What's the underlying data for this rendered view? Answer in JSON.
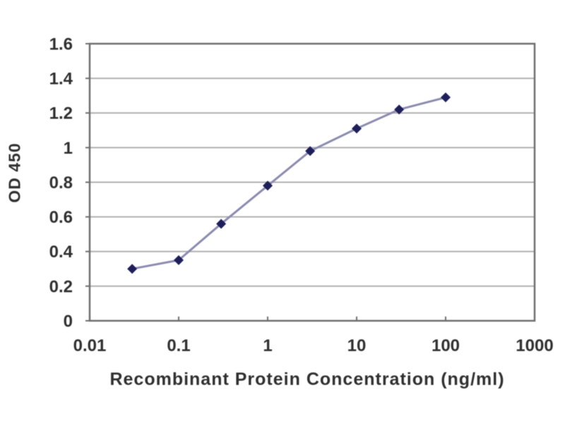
{
  "chart_data": {
    "type": "line",
    "title": "",
    "xlabel": "Recombinant Protein Concentration (ng/ml)",
    "ylabel": "OD 450",
    "x_scale": "log",
    "x": [
      0.03,
      0.1,
      0.3,
      1,
      3,
      10,
      30,
      100
    ],
    "y": [
      0.3,
      0.35,
      0.56,
      0.78,
      0.98,
      1.11,
      1.22,
      1.29
    ],
    "xlim": [
      0.01,
      1000
    ],
    "ylim": [
      0,
      1.6
    ],
    "xticks": [
      0.01,
      0.1,
      1,
      10,
      100,
      1000
    ],
    "xtick_labels": [
      "0.01",
      "0.1",
      "1",
      "10",
      "100",
      "1000"
    ],
    "yticks": [
      0,
      0.2,
      0.4,
      0.6,
      0.8,
      1,
      1.2,
      1.4,
      1.6
    ],
    "ytick_labels": [
      "0",
      "0.2",
      "0.4",
      "0.6",
      "0.8",
      "1",
      "1.2",
      "1.4",
      "1.6"
    ],
    "grid": "horizontal",
    "legend": "none",
    "marker": "diamond",
    "colors": {
      "marker": "#1e1e5a",
      "line": "#8b8bb0",
      "gridline": "#b0b0b0",
      "axis": "#6e6e6e",
      "text": "#2f2f2f",
      "background": "#ffffff"
    }
  }
}
